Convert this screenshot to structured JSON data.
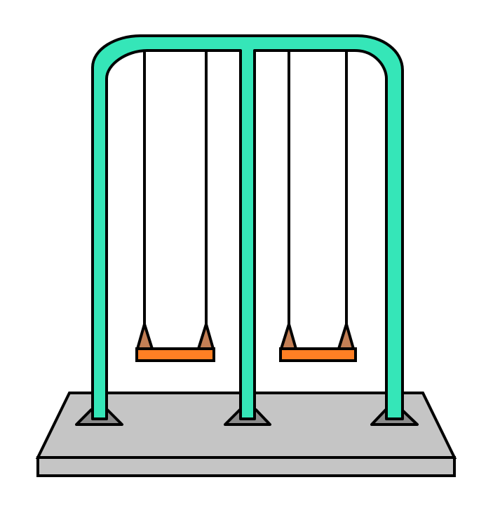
{
  "scene": {
    "subject": "double-swing-set",
    "colors": {
      "background": "#ffffff",
      "frame": "#35e6b8",
      "outline": "#000000",
      "base_top": "#c5c5c5",
      "base_side": "#c5c5c5",
      "foot": "#8c8c8c",
      "seat": "#ff7f24",
      "bracket": "#c47f55"
    },
    "swings": [
      {
        "name": "left-swing"
      },
      {
        "name": "right-swing"
      }
    ]
  }
}
